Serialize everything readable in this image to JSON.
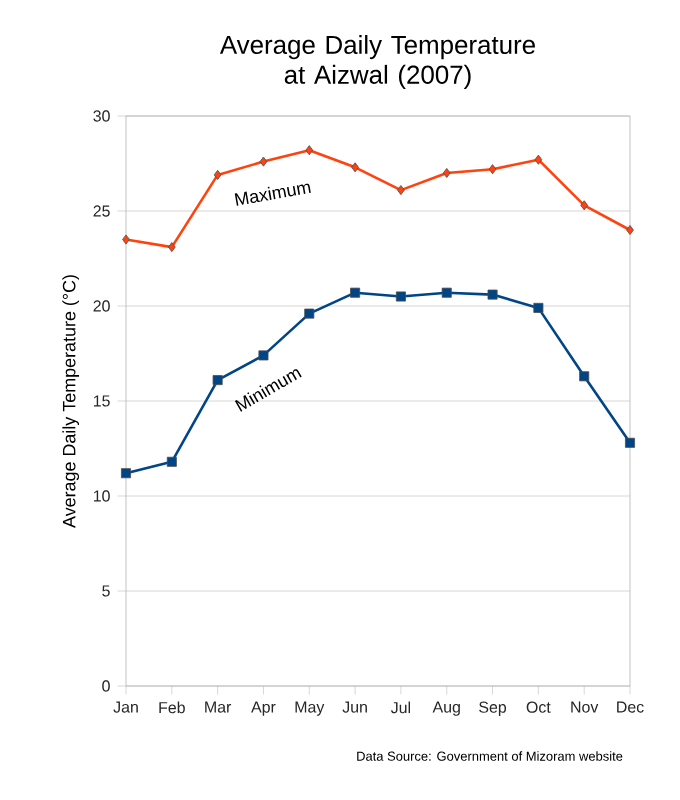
{
  "chart_data": {
    "type": "line",
    "title": "Average Daily Temperature at Aizwal (2007)",
    "ylabel": "Average Daily Temperature (°C)",
    "categories": [
      "Jan",
      "Feb",
      "Mar",
      "Apr",
      "May",
      "Jun",
      "Jul",
      "Aug",
      "Sep",
      "Oct",
      "Nov",
      "Dec"
    ],
    "series": [
      {
        "name": "Maximum",
        "color": "#ff420e",
        "marker": "diamond",
        "values": [
          23.5,
          23.1,
          26.9,
          27.6,
          28.2,
          27.3,
          26.1,
          27.0,
          27.2,
          27.7,
          25.3,
          24.0
        ]
      },
      {
        "name": "Minimum",
        "color": "#004586",
        "marker": "square",
        "values": [
          11.2,
          11.8,
          16.1,
          17.4,
          19.6,
          20.7,
          20.5,
          20.7,
          20.6,
          19.9,
          16.3,
          12.8
        ]
      }
    ],
    "ylim": [
      0,
      30
    ],
    "yticks": [
      0,
      5,
      10,
      15,
      20,
      25,
      30
    ],
    "grid": "y",
    "line_style": "solid",
    "annotations": [
      "Data Source: Government of Mizoram website"
    ]
  }
}
